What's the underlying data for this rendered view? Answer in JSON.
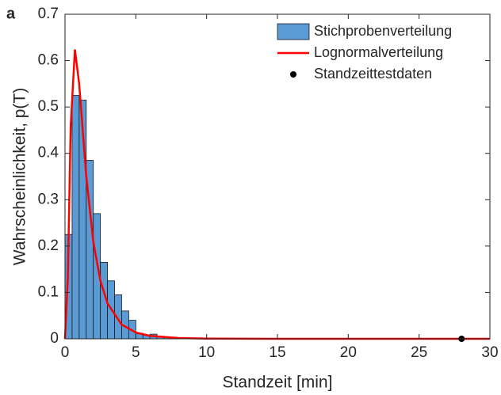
{
  "chart_data": {
    "type": "histogram",
    "panel_label": "a",
    "xlabel": "Standzeit [min]",
    "ylabel": "Wahrscheinlichkeit, p(T)",
    "xlim": [
      0,
      30
    ],
    "ylim": [
      0,
      0.7
    ],
    "xticks": [
      0,
      5,
      10,
      15,
      20,
      25,
      30
    ],
    "yticks": [
      0,
      0.1,
      0.2,
      0.3,
      0.4,
      0.5,
      0.6,
      0.7
    ],
    "legend": "upper right",
    "bins": [
      0,
      0.5,
      1,
      1.5,
      2,
      2.5,
      3,
      3.5,
      4,
      4.5,
      5,
      5.5,
      6,
      6.5,
      7,
      7.5,
      8
    ],
    "series": [
      {
        "name": "Stichprobenverteilung",
        "type": "histogram",
        "color": "#5b9bd5",
        "values": [
          0.225,
          0.525,
          0.515,
          0.385,
          0.27,
          0.165,
          0.125,
          0.095,
          0.06,
          0.04,
          0.012,
          0.008,
          0.01,
          0.005,
          0.003,
          0.002
        ]
      },
      {
        "name": "Lognormalverteilung",
        "type": "line",
        "color": "#ff0000",
        "x": [
          0,
          0.2,
          0.4,
          0.7,
          1,
          1.5,
          2,
          2.5,
          3,
          4,
          5,
          6,
          8,
          10,
          15,
          30
        ],
        "values": [
          0,
          0.132,
          0.458,
          0.624,
          0.55,
          0.351,
          0.209,
          0.125,
          0.0762,
          0.0306,
          0.0135,
          0.0064,
          0.0017,
          0.0005,
          0.0001,
          0
        ]
      },
      {
        "name": "Standzeittestdaten",
        "type": "scatter",
        "color": "#000000",
        "x": [
          28
        ],
        "values": [
          0
        ]
      }
    ]
  }
}
